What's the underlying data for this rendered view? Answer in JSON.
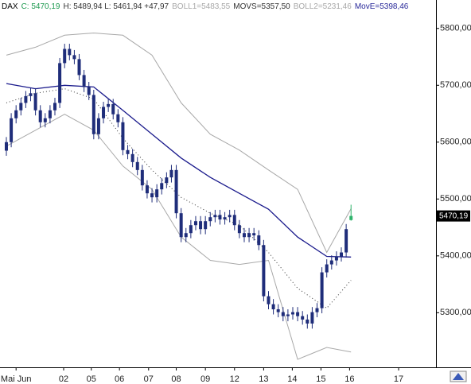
{
  "chart_data": {
    "type": "candlestick",
    "header": [
      {
        "text": "DAX",
        "color": "#000000"
      },
      {
        "text": "C: 5470,19",
        "color": "#1e9a50"
      },
      {
        "text": "H: 5489,94 L: 5461,94 +47,97",
        "color": "#333333"
      },
      {
        "text": "BOLL1=5483,55",
        "color": "#a8a8a8"
      },
      {
        "text": "MOVS=5357,50",
        "color": "#333333"
      },
      {
        "text": "BOLL2=5231,46",
        "color": "#a8a8a8"
      },
      {
        "text": "MovE=5398,46",
        "color": "#2a2a9a"
      }
    ],
    "last_price_label": "5470,19",
    "xlim": [
      -1.31,
      88.5
    ],
    "ylim": [
      5204,
      5850
    ],
    "yticks": [
      {
        "value": 5300,
        "label": "5300,00"
      },
      {
        "value": 5400,
        "label": "5400,00"
      },
      {
        "value": 5500,
        "label": "5500,00"
      },
      {
        "value": 5600,
        "label": "5600,00"
      },
      {
        "value": 5700,
        "label": "5700,00"
      },
      {
        "value": 5800,
        "label": "5800,00"
      }
    ],
    "xticks": [
      {
        "value": 2,
        "label": "Mai Jun"
      },
      {
        "value": 11.8,
        "label": "02"
      },
      {
        "value": 17.5,
        "label": "05"
      },
      {
        "value": 23.3,
        "label": "06"
      },
      {
        "value": 29.3,
        "label": "07"
      },
      {
        "value": 35,
        "label": "08"
      },
      {
        "value": 41,
        "label": "09"
      },
      {
        "value": 47,
        "label": "12"
      },
      {
        "value": 53,
        "label": "13"
      },
      {
        "value": 58.9,
        "label": "14"
      },
      {
        "value": 64.8,
        "label": "15"
      },
      {
        "value": 70.7,
        "label": "16"
      },
      {
        "value": 80.8,
        "label": "17"
      }
    ],
    "candles": {
      "color": "#1f2d7a",
      "last_color": "#2fb36b",
      "open": [
        5585,
        5600,
        5642,
        5656,
        5669,
        5681,
        5686,
        5656,
        5635,
        5642,
        5656,
        5669,
        5739,
        5764,
        5753,
        5746,
        5718,
        5697,
        5683,
        5614,
        5642,
        5662,
        5667,
        5649,
        5635,
        5586,
        5579,
        5565,
        5551,
        5524,
        5510,
        5503,
        5517,
        5528,
        5538,
        5551,
        5475,
        5433,
        5440,
        5454,
        5461,
        5447,
        5461,
        5468,
        5472,
        5464,
        5468,
        5472,
        5454,
        5440,
        5433,
        5440,
        5436,
        5419,
        5329,
        5315,
        5306,
        5301,
        5294,
        5297,
        5301,
        5294,
        5288,
        5281,
        5301,
        5308,
        5371,
        5385,
        5392,
        5399,
        5406,
        5463
      ],
      "high": [
        5609,
        5651,
        5665,
        5678,
        5690,
        5695,
        5695,
        5665,
        5651,
        5665,
        5678,
        5748,
        5773,
        5773,
        5762,
        5755,
        5727,
        5706,
        5692,
        5651,
        5671,
        5676,
        5676,
        5658,
        5644,
        5595,
        5588,
        5574,
        5560,
        5533,
        5519,
        5526,
        5537,
        5547,
        5560,
        5560,
        5484,
        5449,
        5463,
        5470,
        5470,
        5470,
        5477,
        5481,
        5481,
        5477,
        5481,
        5481,
        5463,
        5449,
        5449,
        5449,
        5445,
        5428,
        5338,
        5324,
        5315,
        5310,
        5306,
        5310,
        5310,
        5303,
        5297,
        5310,
        5317,
        5380,
        5394,
        5401,
        5408,
        5415,
        5456,
        5489.94
      ],
      "low": [
        5576,
        5591,
        5633,
        5647,
        5660,
        5672,
        5647,
        5626,
        5626,
        5633,
        5647,
        5660,
        5730,
        5744,
        5737,
        5709,
        5688,
        5674,
        5605,
        5605,
        5633,
        5653,
        5640,
        5626,
        5577,
        5570,
        5556,
        5542,
        5515,
        5501,
        5494,
        5494,
        5508,
        5519,
        5529,
        5466,
        5424,
        5424,
        5431,
        5445,
        5438,
        5438,
        5452,
        5459,
        5455,
        5455,
        5459,
        5445,
        5431,
        5424,
        5424,
        5427,
        5410,
        5320,
        5306,
        5297,
        5292,
        5285,
        5285,
        5288,
        5285,
        5279,
        5272,
        5272,
        5292,
        5299,
        5362,
        5376,
        5383,
        5390,
        5397,
        5461.94
      ],
      "close": [
        5600,
        5642,
        5656,
        5669,
        5681,
        5686,
        5656,
        5635,
        5642,
        5656,
        5669,
        5739,
        5764,
        5753,
        5746,
        5718,
        5697,
        5683,
        5614,
        5642,
        5662,
        5667,
        5649,
        5635,
        5586,
        5579,
        5565,
        5551,
        5524,
        5510,
        5503,
        5517,
        5528,
        5538,
        5551,
        5475,
        5433,
        5440,
        5454,
        5461,
        5447,
        5461,
        5468,
        5472,
        5464,
        5468,
        5472,
        5454,
        5440,
        5433,
        5440,
        5436,
        5419,
        5329,
        5315,
        5306,
        5301,
        5294,
        5297,
        5301,
        5294,
        5288,
        5281,
        5301,
        5308,
        5371,
        5385,
        5392,
        5399,
        5406,
        5447,
        5470.19
      ]
    },
    "lines": [
      {
        "color": "#a8a8a8",
        "dash": false,
        "x": [
          0,
          6,
          12,
          18,
          24,
          30,
          36,
          42,
          48,
          54,
          60,
          66,
          71
        ],
        "values": [
          5753,
          5767,
          5788,
          5792,
          5788,
          5753,
          5669,
          5614,
          5586,
          5551,
          5517,
          5406,
          5483
        ]
      },
      {
        "color": "#333333",
        "dash": true,
        "x": [
          0,
          6,
          12,
          18,
          24,
          30,
          36,
          42,
          48,
          54,
          60,
          66,
          71
        ],
        "values": [
          5669,
          5686,
          5694,
          5676,
          5607,
          5551,
          5503,
          5475,
          5454,
          5406,
          5343,
          5308,
          5357
        ]
      },
      {
        "color": "#a8a8a8",
        "dash": false,
        "x": [
          0,
          6,
          12,
          18,
          24,
          30,
          36,
          42,
          48,
          54,
          60,
          66,
          71
        ],
        "values": [
          5593,
          5621,
          5649,
          5621,
          5558,
          5517,
          5433,
          5392,
          5385,
          5392,
          5218,
          5239,
          5231
        ]
      },
      {
        "color": "#1a1a8c",
        "dash": false,
        "x": [
          0,
          6,
          12,
          18,
          24,
          30,
          36,
          42,
          48,
          54,
          60,
          66,
          71
        ],
        "values": [
          5703,
          5694,
          5700,
          5697,
          5656,
          5614,
          5572,
          5538,
          5510,
          5482,
          5433,
          5399,
          5398
        ]
      }
    ]
  }
}
